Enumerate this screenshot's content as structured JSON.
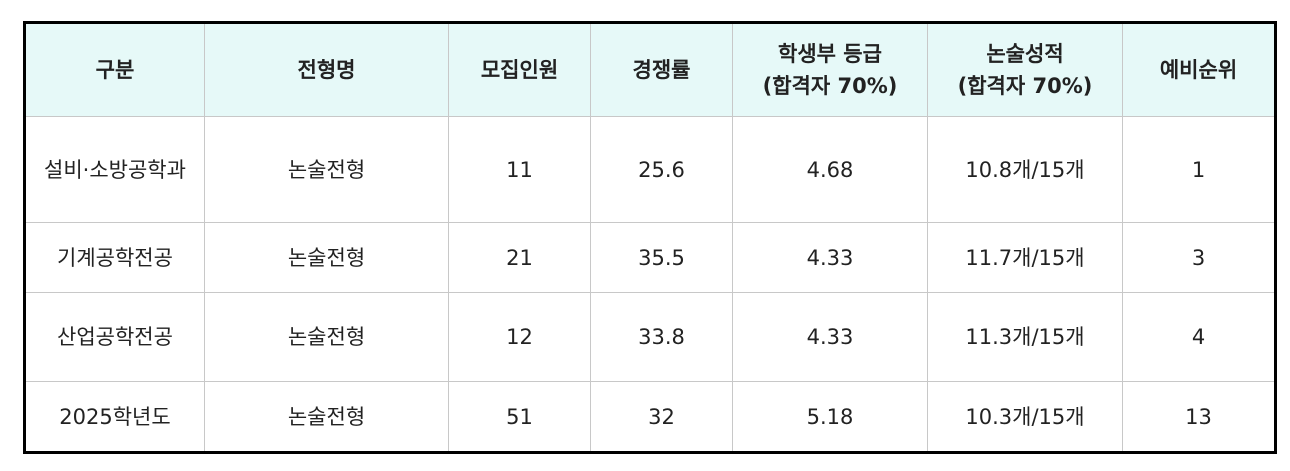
{
  "table": {
    "header": [
      "구분",
      "전형명",
      "모집인원",
      "경쟁률",
      [
        "학생부 등급",
        "(합격자 70%)"
      ],
      [
        "논술성적",
        "(합격자 70%)"
      ],
      "예비순위"
    ],
    "rows": [
      [
        "설비·소방공학과",
        "논술전형",
        "11",
        "25.6",
        "4.68",
        "10.8개/15개",
        "1"
      ],
      [
        "기계공학전공",
        "논술전형",
        "21",
        "35.5",
        "4.33",
        "11.7개/15개",
        "3"
      ],
      [
        "산업공학전공",
        "논술전형",
        "12",
        "33.8",
        "4.33",
        "11.3개/15개",
        "4"
      ],
      [
        "2025학년도",
        "논술전형",
        "51",
        "32",
        "5.18",
        "10.3개/15개",
        "13"
      ]
    ]
  }
}
